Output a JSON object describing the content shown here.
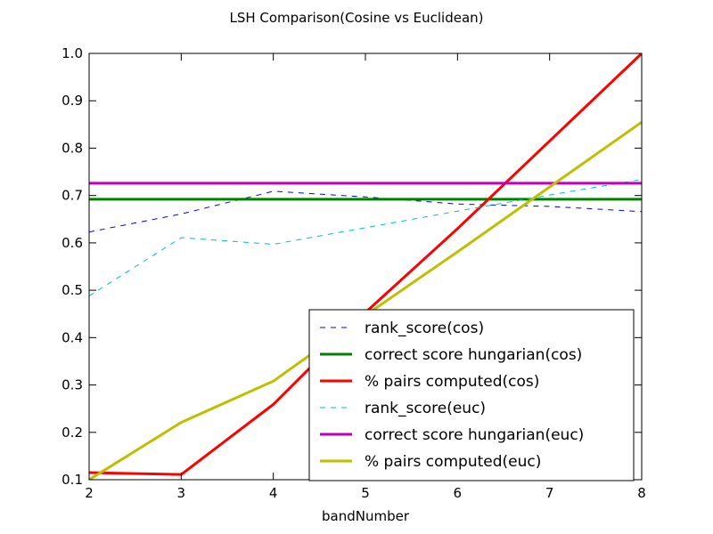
{
  "chart_data": {
    "type": "line",
    "title": "LSH Comparison(Cosine vs Euclidean)",
    "xlabel": "bandNumber",
    "ylabel": "",
    "xlim": [
      2,
      8
    ],
    "ylim": [
      0.1,
      1.0
    ],
    "xticks": [
      "2",
      "3",
      "4",
      "5",
      "6",
      "7",
      "8"
    ],
    "yticks": [
      "0.1",
      "0.2",
      "0.3",
      "0.4",
      "0.5",
      "0.6",
      "0.7",
      "0.8",
      "0.9",
      "1.0"
    ],
    "grid": false,
    "legend_position": "lower-right",
    "x": [
      2,
      3,
      4,
      5,
      6,
      7,
      8
    ],
    "series": [
      {
        "name": "rank_score(cos)",
        "color": "#0000ff",
        "dash": "dashed",
        "width": 1,
        "values": [
          0.623,
          0.661,
          0.709,
          0.697,
          0.682,
          0.677,
          0.666
        ]
      },
      {
        "name": "correct score hungarian(cos)",
        "color": "#008000",
        "dash": "solid",
        "width": 3,
        "values": [
          0.692,
          0.692,
          0.692,
          0.692,
          0.692,
          0.692,
          0.692
        ]
      },
      {
        "name": "% pairs computed(cos)",
        "color": "#ff0000",
        "dash": "solid",
        "width": 3,
        "values": [
          0.115,
          0.111,
          0.259,
          0.453,
          0.63,
          0.815,
          1.0
        ]
      },
      {
        "name": "rank_score(euc)",
        "color": "#00bfbf",
        "dash": "dashed",
        "width": 1,
        "values": [
          0.488,
          0.611,
          0.597,
          0.632,
          0.667,
          0.701,
          0.734
        ]
      },
      {
        "name": "correct score hungarian(euc)",
        "color": "#bf00bf",
        "dash": "solid",
        "width": 3,
        "values": [
          0.726,
          0.726,
          0.726,
          0.726,
          0.726,
          0.726,
          0.726
        ]
      },
      {
        "name": "% pairs computed(euc)",
        "color": "#bfbf00",
        "dash": "solid",
        "width": 3,
        "values": [
          0.1,
          0.221,
          0.308,
          0.447,
          0.581,
          0.718,
          0.855
        ]
      }
    ]
  }
}
